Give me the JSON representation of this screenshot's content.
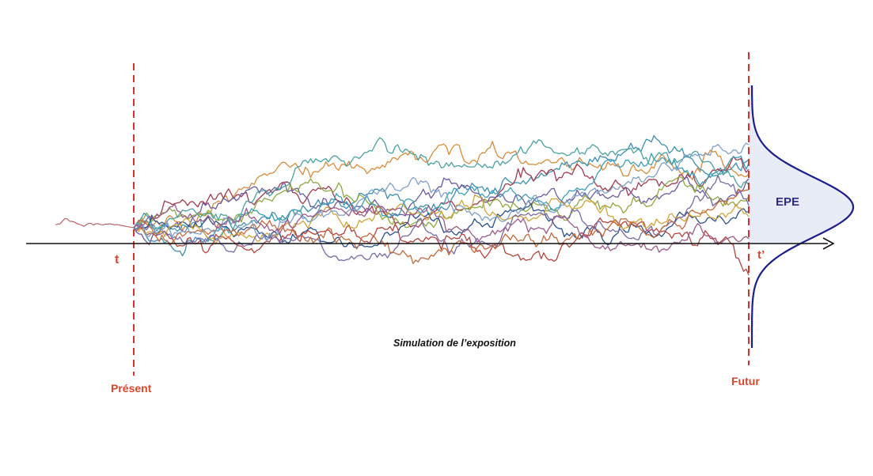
{
  "labels": {
    "t_start": "t",
    "t_end": "t’",
    "present": "Présent",
    "future": "Futur",
    "epe": "EPE",
    "caption": "Simulation de l’exposition"
  },
  "colors": {
    "marker_line": "#d9322b",
    "marker_text": "#d9472b",
    "axis": "#111111",
    "distribution_curve": "#1c1f8a",
    "distribution_fill": "#e8ecf7",
    "history_path": "#b5575e",
    "paths": [
      "#d98c3a",
      "#3c8fb0",
      "#a23a4f",
      "#6b5aa0",
      "#8da93e",
      "#3a9fb8",
      "#2b4f8f",
      "#b7433c",
      "#d3a43a",
      "#7a6aa8",
      "#4aa3a0",
      "#c46a3c",
      "#7fa0c8",
      "#9c5a8a"
    ]
  },
  "simulation": {
    "path_count": 14,
    "path_endpoints": [
      0.68,
      0.86,
      0.74,
      0.62,
      0.4,
      0.82,
      0.2,
      -0.6,
      0.14,
      0.28,
      0.54,
      0.48,
      1.05,
      -0.14
    ]
  }
}
